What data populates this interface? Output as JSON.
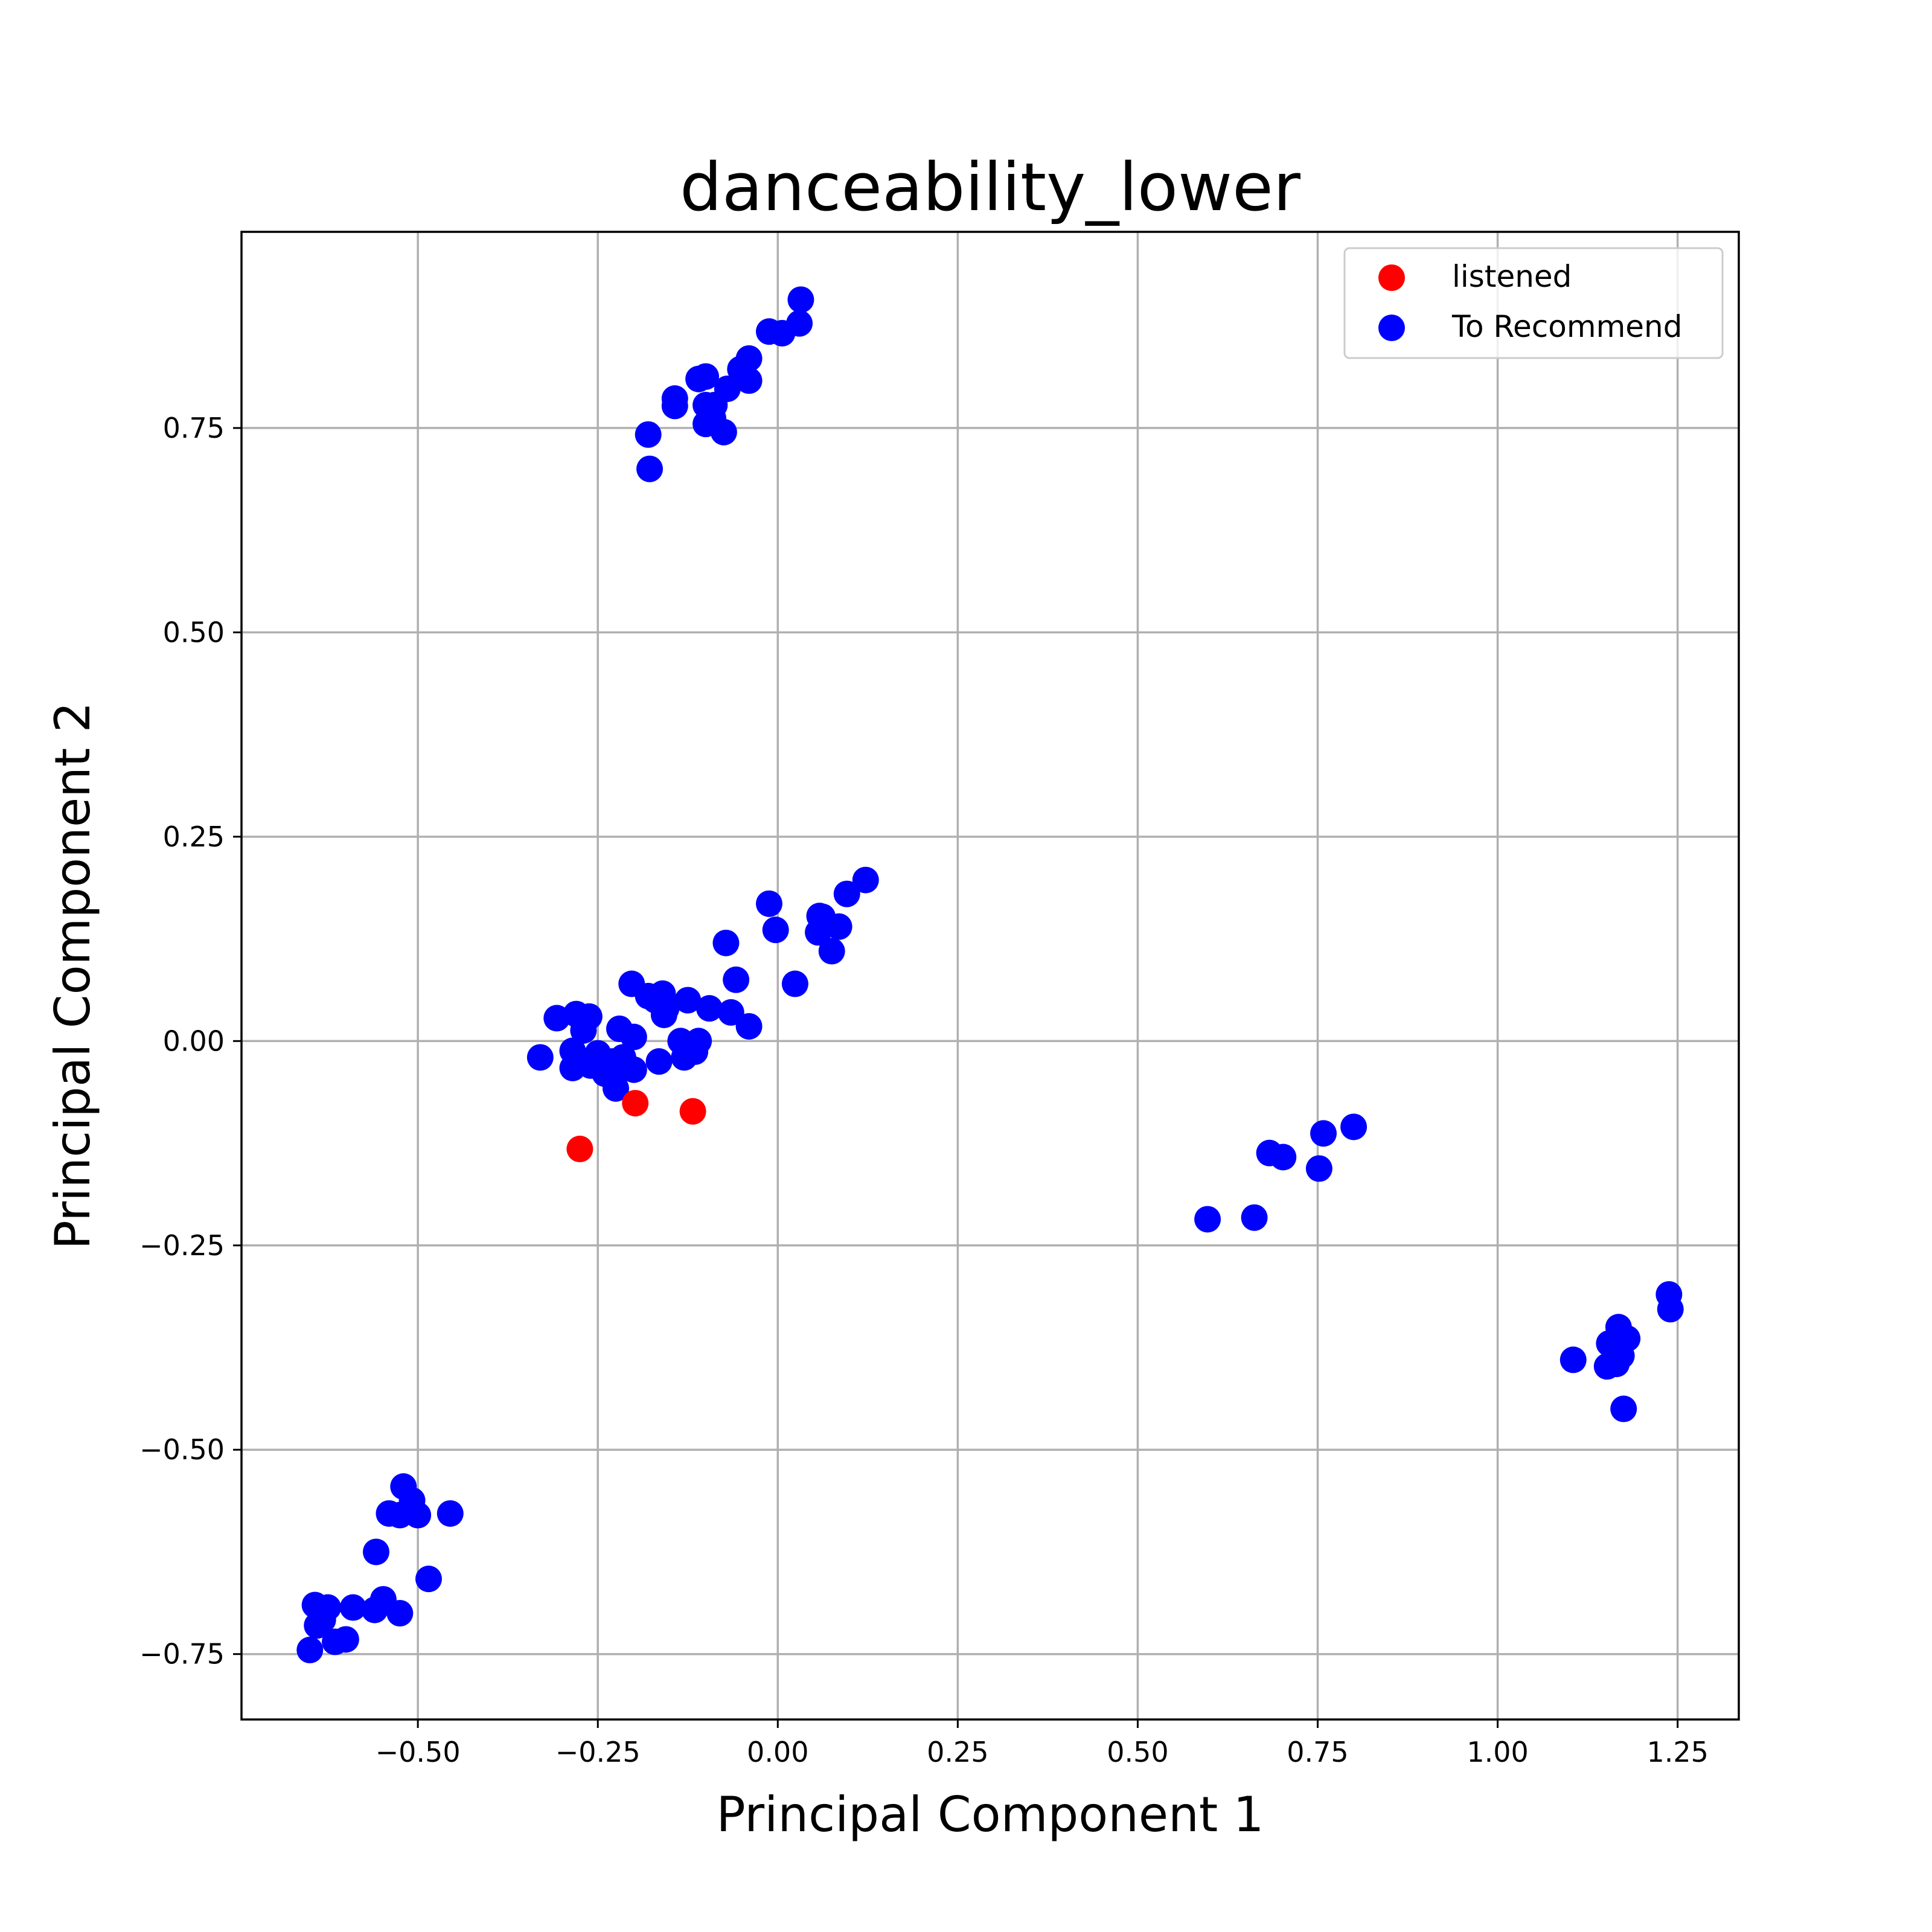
{
  "chart_data": {
    "type": "scatter",
    "title": "danceability_lower",
    "xlabel": "Principal Component 1",
    "ylabel": "Principal Component 2",
    "xlim": [
      -0.745,
      1.335
    ],
    "ylim": [
      -0.83,
      0.99
    ],
    "x_ticks": [
      -0.5,
      -0.25,
      0.0,
      0.25,
      0.5,
      0.75,
      1.0,
      1.25
    ],
    "x_tick_labels": [
      "−0.50",
      "−0.25",
      "0.00",
      "0.25",
      "0.50",
      "0.75",
      "1.00",
      "1.25"
    ],
    "y_ticks": [
      -0.75,
      -0.5,
      -0.25,
      0.0,
      0.25,
      0.5,
      0.75
    ],
    "y_tick_labels": [
      "−0.75",
      "−0.50",
      "−0.25",
      "0.00",
      "0.25",
      "0.50",
      "0.75"
    ],
    "grid": true,
    "legend_position": "top-right",
    "series": [
      {
        "name": "listened",
        "color": "#ff0000",
        "points": [
          [
            -0.275,
            -0.132
          ],
          [
            -0.198,
            -0.076
          ],
          [
            -0.118,
            -0.086
          ]
        ]
      },
      {
        "name": "To Recommend",
        "color": "#0000ff",
        "points": [
          [
            0.032,
            0.907
          ],
          [
            0.03,
            0.878
          ],
          [
            0.006,
            0.866
          ],
          [
            -0.012,
            0.868
          ],
          [
            -0.04,
            0.835
          ],
          [
            -0.052,
            0.822
          ],
          [
            -0.04,
            0.808
          ],
          [
            -0.07,
            0.798
          ],
          [
            -0.1,
            0.813
          ],
          [
            -0.11,
            0.81
          ],
          [
            -0.143,
            0.786
          ],
          [
            -0.143,
            0.777
          ],
          [
            -0.088,
            0.778
          ],
          [
            -0.1,
            0.778
          ],
          [
            -0.09,
            0.762
          ],
          [
            -0.1,
            0.755
          ],
          [
            -0.075,
            0.745
          ],
          [
            -0.18,
            0.742
          ],
          [
            -0.178,
            0.7
          ],
          [
            0.122,
            0.197
          ],
          [
            0.096,
            0.18
          ],
          [
            -0.012,
            0.168
          ],
          [
            0.058,
            0.153
          ],
          [
            0.062,
            0.152
          ],
          [
            0.085,
            0.14
          ],
          [
            -0.003,
            0.136
          ],
          [
            0.056,
            0.133
          ],
          [
            0.075,
            0.11
          ],
          [
            -0.072,
            0.12
          ],
          [
            -0.058,
            0.075
          ],
          [
            0.024,
            0.07
          ],
          [
            -0.203,
            0.07
          ],
          [
            -0.18,
            0.055
          ],
          [
            -0.16,
            0.058
          ],
          [
            -0.17,
            0.05
          ],
          [
            -0.125,
            0.05
          ],
          [
            -0.155,
            0.04
          ],
          [
            -0.158,
            0.032
          ],
          [
            -0.095,
            0.04
          ],
          [
            -0.065,
            0.035
          ],
          [
            -0.04,
            0.018
          ],
          [
            -0.307,
            0.028
          ],
          [
            -0.28,
            0.033
          ],
          [
            -0.262,
            0.03
          ],
          [
            -0.27,
            0.013
          ],
          [
            -0.22,
            0.015
          ],
          [
            -0.2,
            0.005
          ],
          [
            -0.135,
            0.0
          ],
          [
            -0.11,
            0.0
          ],
          [
            -0.115,
            -0.013
          ],
          [
            -0.13,
            -0.02
          ],
          [
            -0.33,
            -0.02
          ],
          [
            -0.285,
            -0.012
          ],
          [
            -0.25,
            -0.015
          ],
          [
            -0.23,
            -0.025
          ],
          [
            -0.215,
            -0.02
          ],
          [
            -0.21,
            -0.03
          ],
          [
            -0.165,
            -0.025
          ],
          [
            -0.2,
            -0.035
          ],
          [
            -0.24,
            -0.04
          ],
          [
            -0.26,
            -0.03
          ],
          [
            -0.285,
            -0.033
          ],
          [
            -0.225,
            -0.058
          ],
          [
            0.597,
            -0.218
          ],
          [
            0.662,
            -0.216
          ],
          [
            0.683,
            -0.137
          ],
          [
            0.702,
            -0.142
          ],
          [
            0.752,
            -0.156
          ],
          [
            0.758,
            -0.113
          ],
          [
            0.8,
            -0.105
          ],
          [
            1.238,
            -0.31
          ],
          [
            1.24,
            -0.328
          ],
          [
            1.168,
            -0.35
          ],
          [
            1.18,
            -0.364
          ],
          [
            1.155,
            -0.37
          ],
          [
            1.165,
            -0.38
          ],
          [
            1.172,
            -0.385
          ],
          [
            1.105,
            -0.39
          ],
          [
            1.165,
            -0.395
          ],
          [
            1.152,
            -0.398
          ],
          [
            1.175,
            -0.45
          ],
          [
            -0.52,
            -0.545
          ],
          [
            -0.508,
            -0.562
          ],
          [
            -0.5,
            -0.58
          ],
          [
            -0.525,
            -0.58
          ],
          [
            -0.54,
            -0.578
          ],
          [
            -0.455,
            -0.578
          ],
          [
            -0.558,
            -0.625
          ],
          [
            -0.485,
            -0.658
          ],
          [
            -0.548,
            -0.683
          ],
          [
            -0.59,
            -0.693
          ],
          [
            -0.56,
            -0.696
          ],
          [
            -0.525,
            -0.7
          ],
          [
            -0.643,
            -0.69
          ],
          [
            -0.625,
            -0.693
          ],
          [
            -0.632,
            -0.708
          ],
          [
            -0.64,
            -0.715
          ],
          [
            -0.6,
            -0.732
          ],
          [
            -0.615,
            -0.735
          ],
          [
            -0.65,
            -0.745
          ]
        ]
      }
    ]
  }
}
